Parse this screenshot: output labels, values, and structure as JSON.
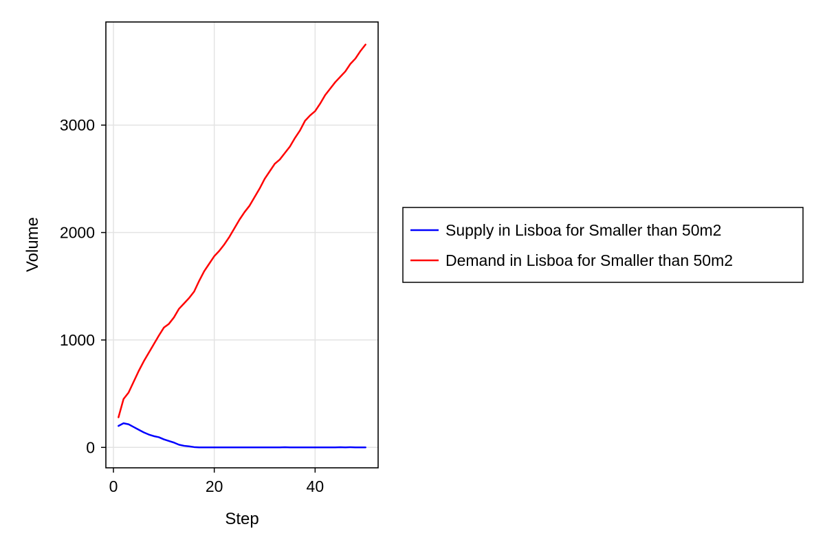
{
  "chart_data": {
    "type": "line",
    "title": "",
    "xlabel": "Step",
    "ylabel": "Volume",
    "xlim": [
      -1.5,
      52.5
    ],
    "ylim": [
      -190,
      3960
    ],
    "xticks": [
      0,
      20,
      40
    ],
    "xtick_labels": [
      "0",
      "20",
      "40"
    ],
    "yticks": [
      0,
      1000,
      2000,
      3000
    ],
    "ytick_labels": [
      "0",
      "1000",
      "2000",
      "3000"
    ],
    "grid": true,
    "legend_position": "right",
    "x": [
      1,
      2,
      3,
      4,
      5,
      6,
      7,
      8,
      9,
      10,
      11,
      12,
      13,
      14,
      15,
      16,
      17,
      18,
      19,
      20,
      21,
      22,
      23,
      24,
      25,
      26,
      27,
      28,
      29,
      30,
      31,
      32,
      33,
      34,
      35,
      36,
      37,
      38,
      39,
      40,
      41,
      42,
      43,
      44,
      45,
      46,
      47,
      48,
      49,
      50
    ],
    "series": [
      {
        "name": "Supply in Lisboa for Smaller than 50m2",
        "color": "#0000ff",
        "values": [
          200,
          225,
          215,
          190,
          165,
          140,
          120,
          105,
          95,
          75,
          60,
          45,
          25,
          15,
          10,
          3,
          0,
          0,
          0,
          0,
          0,
          0,
          0,
          0,
          0,
          0,
          0,
          0,
          0,
          0,
          0,
          0,
          0,
          2,
          0,
          0,
          0,
          0,
          0,
          0,
          0,
          0,
          0,
          0,
          2,
          0,
          2,
          0,
          0,
          0
        ]
      },
      {
        "name": "Demand in Lisboa for Smaller than 50m2",
        "color": "#ff0000",
        "values": [
          280,
          450,
          510,
          610,
          710,
          800,
          880,
          960,
          1040,
          1115,
          1150,
          1210,
          1290,
          1340,
          1390,
          1450,
          1550,
          1640,
          1710,
          1780,
          1830,
          1890,
          1960,
          2040,
          2120,
          2190,
          2250,
          2330,
          2410,
          2500,
          2570,
          2640,
          2680,
          2740,
          2800,
          2880,
          2950,
          3040,
          3090,
          3130,
          3200,
          3280,
          3340,
          3400,
          3450,
          3500,
          3570,
          3620,
          3690,
          3750
        ]
      }
    ]
  }
}
